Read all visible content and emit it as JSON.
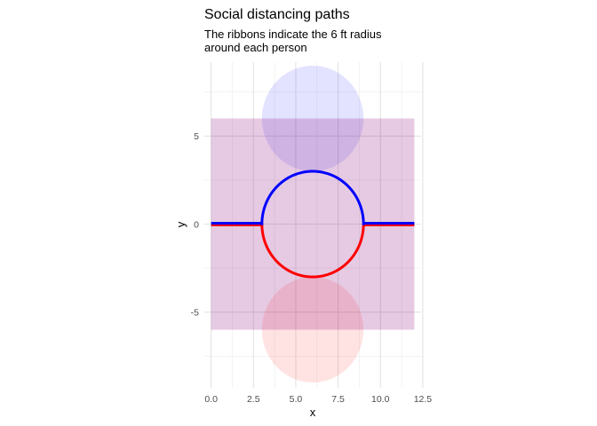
{
  "chart_data": {
    "type": "line",
    "title": "Social distancing paths",
    "subtitle_lines": [
      "The ribbons indicate the 6 ft radius",
      "around each person"
    ],
    "xlabel": "x",
    "ylabel": "y",
    "xlim": [
      -0.4,
      12.4
    ],
    "ylim": [
      -9.3,
      9.2
    ],
    "aspect": "equal",
    "grid": true,
    "x_ticks": [
      {
        "value": 0,
        "label": "0.0"
      },
      {
        "value": 2.5,
        "label": "2.5"
      },
      {
        "value": 5,
        "label": "5.0"
      },
      {
        "value": 7.5,
        "label": "7.5"
      },
      {
        "value": 10,
        "label": "10.0"
      },
      {
        "value": 12.5,
        "label": "12.5"
      }
    ],
    "y_ticks": [
      {
        "value": -5,
        "label": "-5"
      },
      {
        "value": 0,
        "label": "0"
      },
      {
        "value": 5,
        "label": "5"
      }
    ],
    "ribbons": [
      {
        "color": "#0000ff",
        "alpha": 0.11,
        "x_range": [
          0,
          12
        ],
        "y_band": [
          -6,
          6
        ],
        "circle": {
          "cx": 6,
          "cy": 6,
          "r": 3
        }
      },
      {
        "color": "#ff0000",
        "alpha": 0.11,
        "x_range": [
          0,
          12
        ],
        "y_band": [
          -6,
          6
        ],
        "circle": {
          "cx": 6,
          "cy": -6,
          "r": 3
        }
      }
    ],
    "series": [
      {
        "color": "#ff0000",
        "segments": [
          {
            "kind": "line",
            "points": [
              [
                0,
                -0.05
              ],
              [
                3,
                -0.05
              ]
            ]
          },
          {
            "kind": "arc",
            "cx": 6,
            "cy": 0,
            "r": 3,
            "from_deg": 180,
            "to_deg": 360
          },
          {
            "kind": "line",
            "points": [
              [
                9,
                -0.05
              ],
              [
                12,
                -0.05
              ]
            ]
          }
        ]
      },
      {
        "color": "#0000ff",
        "segments": [
          {
            "kind": "line",
            "points": [
              [
                0,
                0.05
              ],
              [
                3,
                0.05
              ]
            ]
          },
          {
            "kind": "arc",
            "cx": 6,
            "cy": 0,
            "r": 3,
            "from_deg": 180,
            "to_deg": 0
          },
          {
            "kind": "line",
            "points": [
              [
                9,
                0.05
              ],
              [
                12,
                0.05
              ]
            ]
          }
        ]
      }
    ]
  }
}
